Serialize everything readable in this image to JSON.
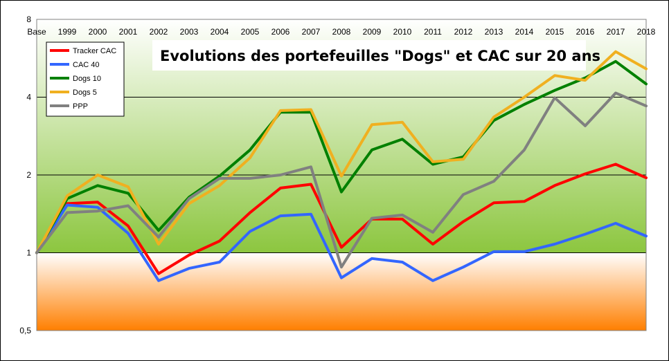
{
  "chart_data": {
    "type": "line",
    "title": "Evolutions des portefeuilles \"Dogs\" et CAC sur  20 ans",
    "xlabel": "",
    "ylabel": "",
    "yscale": "log2",
    "ylim": [
      0.5,
      8
    ],
    "ytick_values": [
      0.5,
      1,
      2,
      4,
      8
    ],
    "ytick_labels": [
      "0,5",
      "1",
      "2",
      "4",
      "8"
    ],
    "categories": [
      "Base",
      "1999",
      "2000",
      "2001",
      "2002",
      "2003",
      "2004",
      "2005",
      "2006",
      "2007",
      "2008",
      "2009",
      "2010",
      "2011",
      "2012",
      "2013",
      "2014",
      "2015",
      "2016",
      "2017",
      "2018"
    ],
    "legend_position": "top-left",
    "grid": "horizontal",
    "background_gradient": {
      "above_1": [
        "#ffffff",
        "#8cc63f"
      ],
      "below_1": [
        "#ffffff",
        "#ff7f00"
      ]
    },
    "series": [
      {
        "name": "Tracker CAC",
        "color": "#ff0000",
        "values": [
          1.0,
          1.55,
          1.57,
          1.27,
          0.83,
          0.98,
          1.11,
          1.43,
          1.78,
          1.84,
          1.05,
          1.35,
          1.35,
          1.08,
          1.32,
          1.56,
          1.58,
          1.82,
          2.02,
          2.2,
          1.95
        ]
      },
      {
        "name": "CAC 40",
        "color": "#3366ff",
        "values": [
          1.0,
          1.53,
          1.5,
          1.19,
          0.78,
          0.87,
          0.92,
          1.21,
          1.39,
          1.41,
          0.8,
          0.95,
          0.92,
          0.78,
          0.88,
          1.01,
          1.01,
          1.08,
          1.18,
          1.3,
          1.16
        ]
      },
      {
        "name": "Dogs 10",
        "color": "#008000",
        "values": [
          1.0,
          1.62,
          1.82,
          1.7,
          1.22,
          1.64,
          1.98,
          2.5,
          3.5,
          3.5,
          1.72,
          2.5,
          2.75,
          2.2,
          2.35,
          3.25,
          3.75,
          4.25,
          4.75,
          5.5,
          4.5
        ]
      },
      {
        "name": "Dogs 5",
        "color": "#f0b020",
        "values": [
          1.0,
          1.66,
          2.0,
          1.8,
          1.08,
          1.55,
          1.82,
          2.33,
          3.55,
          3.58,
          1.98,
          3.13,
          3.2,
          2.25,
          2.3,
          3.35,
          4.0,
          4.85,
          4.65,
          6.0,
          5.15
        ]
      },
      {
        "name": "PPP",
        "color": "#808080",
        "values": [
          1.0,
          1.43,
          1.45,
          1.52,
          1.15,
          1.62,
          1.94,
          1.94,
          2.0,
          2.15,
          0.88,
          1.36,
          1.4,
          1.2,
          1.68,
          1.89,
          2.5,
          3.98,
          3.1,
          4.15,
          3.7
        ]
      }
    ]
  }
}
